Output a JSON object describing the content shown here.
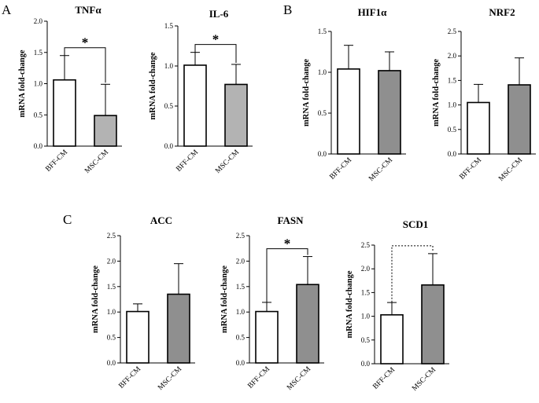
{
  "panels": [
    {
      "letter": "A"
    },
    {
      "letter": "B"
    },
    {
      "letter": "C"
    }
  ],
  "colors": {
    "bff": "#ffffff",
    "msc_light": "#b3b3b3",
    "msc_dark": "#8f8f8f",
    "stroke": "#000000"
  },
  "chart_data": [
    {
      "type": "bar",
      "title": "TNFα",
      "ylabel": "mRNA fold-change",
      "categories": [
        "BFF-CM",
        "MSC-CM"
      ],
      "values": [
        1.06,
        0.49
      ],
      "errors": [
        0.39,
        0.5
      ],
      "ylim": [
        0,
        2.0
      ],
      "yticks": [
        "0.0",
        "0.5",
        "1.0",
        "1.5",
        "2.0"
      ],
      "bar_colors": [
        "#ffffff",
        "#b3b3b3"
      ],
      "significance": {
        "label": "*",
        "style": "solid"
      }
    },
    {
      "type": "bar",
      "title": "IL-6",
      "ylabel": "mRNA fold-change",
      "categories": [
        "BFF-CM",
        "MSC-CM"
      ],
      "values": [
        1.01,
        0.77
      ],
      "errors": [
        0.16,
        0.25
      ],
      "ylim": [
        0,
        1.5
      ],
      "yticks": [
        "0.0",
        "0.5",
        "1.0",
        "1.5"
      ],
      "bar_colors": [
        "#ffffff",
        "#b3b3b3"
      ],
      "significance": {
        "label": "*",
        "style": "solid"
      }
    },
    {
      "type": "bar",
      "title": "HIF1α",
      "ylabel": "mRNA fold-change",
      "categories": [
        "BFF-CM",
        "MSC-CM"
      ],
      "values": [
        1.04,
        1.02
      ],
      "errors": [
        0.29,
        0.23
      ],
      "ylim": [
        0,
        1.5
      ],
      "yticks": [
        "0.0",
        "0.5",
        "1.0",
        "1.5"
      ],
      "bar_colors": [
        "#ffffff",
        "#8f8f8f"
      ],
      "significance": null
    },
    {
      "type": "bar",
      "title": "NRF2",
      "ylabel": "mRNA fold-change",
      "categories": [
        "BFF-CM",
        "MSC-CM"
      ],
      "values": [
        1.05,
        1.41
      ],
      "errors": [
        0.37,
        0.55
      ],
      "ylim": [
        0,
        2.5
      ],
      "yticks": [
        "0.0",
        "0.5",
        "1.0",
        "1.5",
        "2.0",
        "2.5"
      ],
      "bar_colors": [
        "#ffffff",
        "#8f8f8f"
      ],
      "significance": null
    },
    {
      "type": "bar",
      "title": "ACC",
      "ylabel": "mRNA fold-change",
      "categories": [
        "BFF-CM",
        "MSC-CM"
      ],
      "values": [
        1.01,
        1.35
      ],
      "errors": [
        0.15,
        0.6
      ],
      "ylim": [
        0,
        2.5
      ],
      "yticks": [
        "0.0",
        "0.5",
        "1.0",
        "1.5",
        "2.0",
        "2.5"
      ],
      "bar_colors": [
        "#ffffff",
        "#8f8f8f"
      ],
      "significance": null
    },
    {
      "type": "bar",
      "title": "FASN",
      "ylabel": "mRNA fold-change",
      "categories": [
        "BFF-CM",
        "MSC-CM"
      ],
      "values": [
        1.01,
        1.54
      ],
      "errors": [
        0.18,
        0.55
      ],
      "ylim": [
        0,
        2.5
      ],
      "yticks": [
        "0.0",
        "0.5",
        "1.0",
        "1.5",
        "2.0",
        "2.5"
      ],
      "bar_colors": [
        "#ffffff",
        "#8f8f8f"
      ],
      "significance": {
        "label": "*",
        "style": "solid"
      }
    },
    {
      "type": "bar",
      "title": "SCD1",
      "ylabel": "mRNA fold-change",
      "categories": [
        "BFF-CM",
        "MSC-CM"
      ],
      "values": [
        1.03,
        1.66
      ],
      "errors": [
        0.26,
        0.66
      ],
      "ylim": [
        0,
        2.5
      ],
      "yticks": [
        "0.0",
        "0.5",
        "1.0",
        "1.5",
        "2.0",
        "2.5"
      ],
      "bar_colors": [
        "#ffffff",
        "#8f8f8f"
      ],
      "significance": {
        "label": "",
        "style": "dotted"
      }
    }
  ]
}
